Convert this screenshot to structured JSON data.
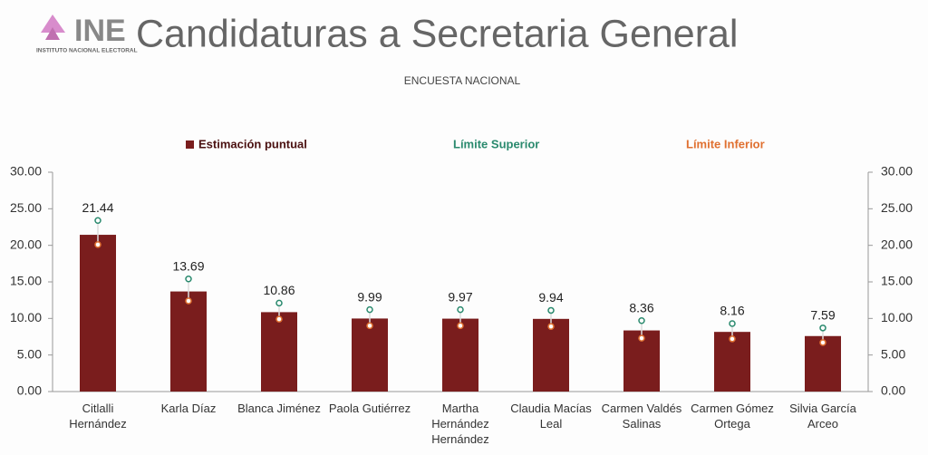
{
  "logo": {
    "name": "INE",
    "subtitle": "INSTITUTO NACIONAL ELECTORAL"
  },
  "chart_data": {
    "type": "bar_errorbar",
    "title": "Candidaturas a Secretaria General",
    "subtitle": "ENCUESTA NACIONAL",
    "categories": [
      "Citlalli Hernández",
      "Karla Díaz",
      "Blanca Jiménez",
      "Paola Gutiérrez",
      "Martha Hernández Hernández",
      "Claudia Macías Leal",
      "Carmen Valdés Salinas",
      "Carmen Gómez Ortega",
      "Silvia García Arceo"
    ],
    "series": [
      {
        "name": "Estimación puntual",
        "color": "#7a1d1d",
        "values": [
          21.44,
          13.69,
          10.86,
          9.99,
          9.97,
          9.94,
          8.36,
          8.16,
          7.59
        ]
      },
      {
        "name": "Límite Superior",
        "color": "#2a8a6e",
        "values": [
          23.4,
          15.4,
          12.1,
          11.2,
          11.2,
          11.1,
          9.7,
          9.3,
          8.7
        ]
      },
      {
        "name": "Límite Inferior",
        "color": "#e07030",
        "values": [
          20.1,
          12.4,
          9.9,
          9.0,
          9.0,
          8.9,
          7.3,
          7.2,
          6.7
        ]
      }
    ],
    "ylim": [
      0,
      30
    ],
    "yticks": [
      {
        "value": 0,
        "label": "0.00"
      },
      {
        "value": 5,
        "label": "5.00"
      },
      {
        "value": 10,
        "label": "10.00"
      },
      {
        "value": 15,
        "label": "15.00"
      },
      {
        "value": 20,
        "label": "20.00"
      },
      {
        "value": 25,
        "label": "25.00"
      },
      {
        "value": 30,
        "label": "30.00"
      }
    ],
    "y2lim": [
      0,
      30
    ],
    "y2ticks": [
      {
        "value": 0,
        "label": "0.00"
      },
      {
        "value": 5,
        "label": "5.00"
      },
      {
        "value": 10,
        "label": "10.00"
      },
      {
        "value": 15,
        "label": "15.00"
      },
      {
        "value": 20,
        "label": "20.00"
      },
      {
        "value": 25,
        "label": "25.00"
      },
      {
        "value": 30,
        "label": "30.00"
      }
    ]
  }
}
